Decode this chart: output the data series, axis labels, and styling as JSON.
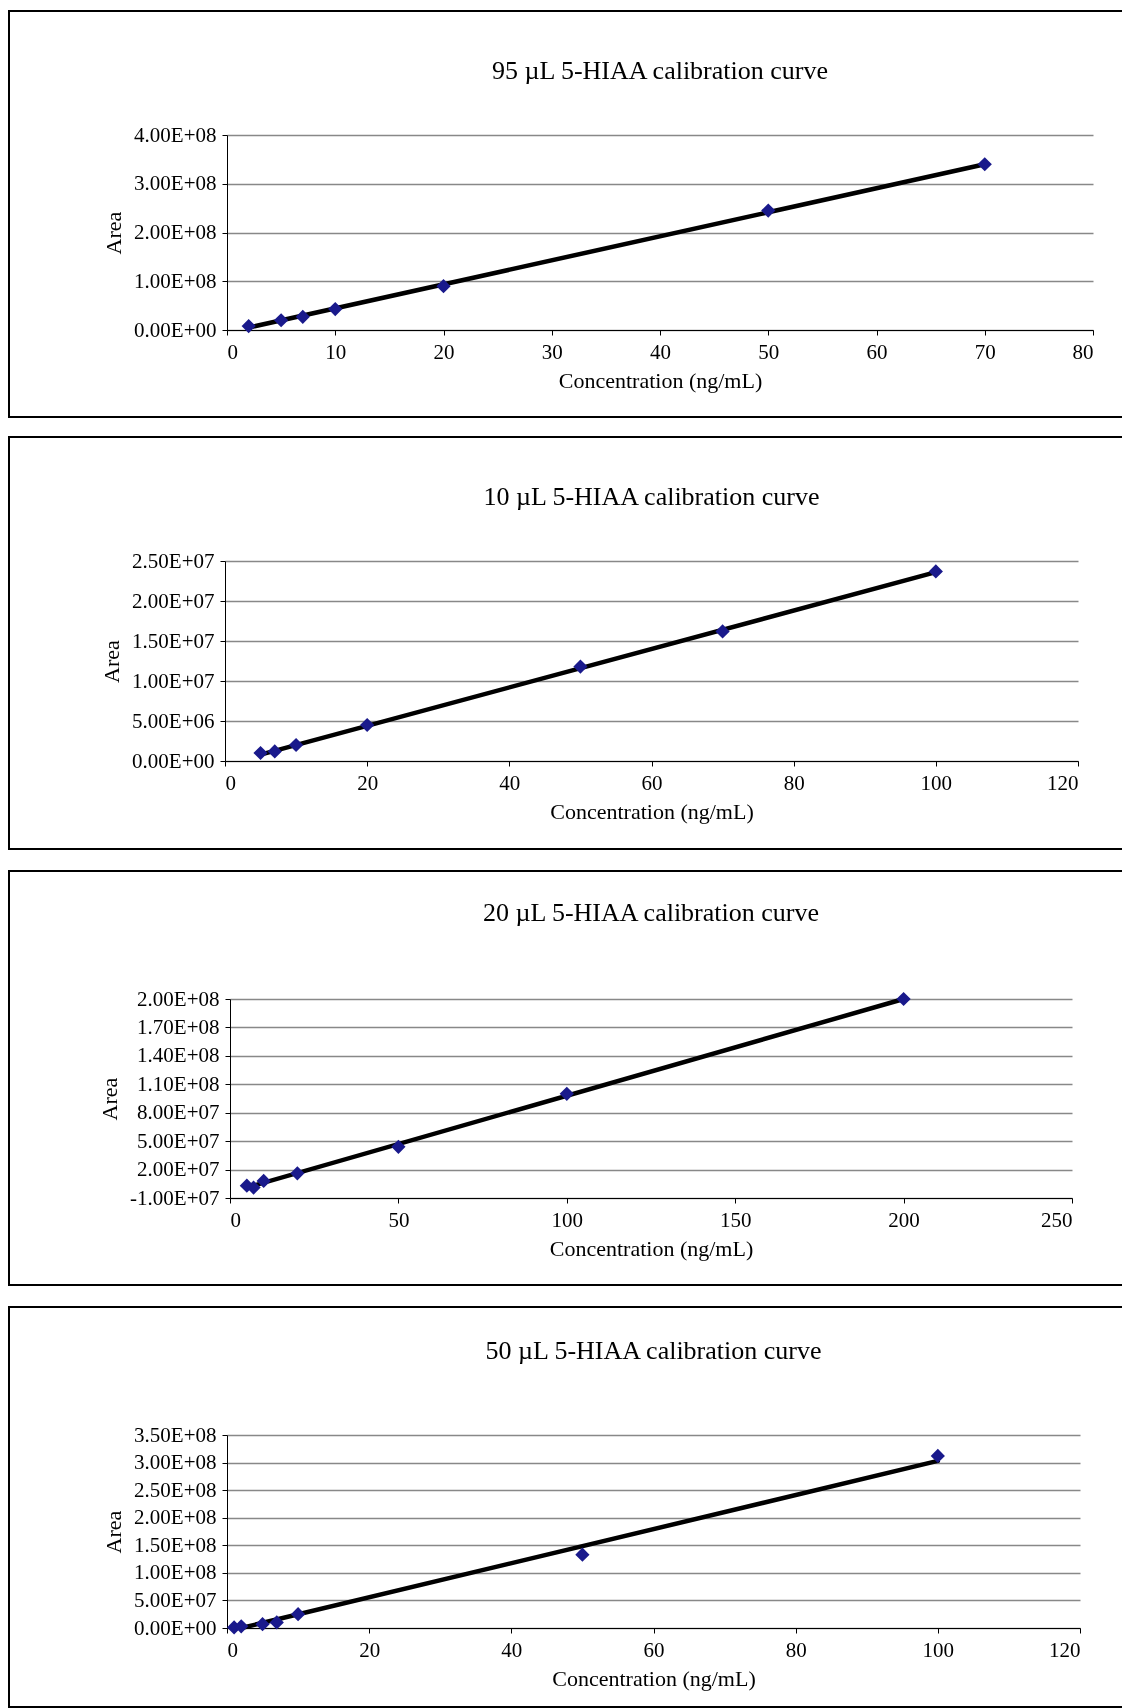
{
  "chart_data": [
    {
      "type": "scatter",
      "title": "95 µL 5-HIAA calibration curve",
      "xlabel": "Concentration (ng/mL)",
      "ylabel": "Area",
      "xlim": [
        0,
        80
      ],
      "xticks": [
        0,
        10,
        20,
        30,
        40,
        50,
        60,
        70,
        80
      ],
      "ylim": [
        0,
        400000000
      ],
      "yticks": [
        {
          "value": 0,
          "label": "0.00E+00"
        },
        {
          "value": 100000000,
          "label": "1.00E+08"
        },
        {
          "value": 200000000,
          "label": "2.00E+08"
        },
        {
          "value": 300000000,
          "label": "3.00E+08"
        },
        {
          "value": 400000000,
          "label": "4.00E+08"
        }
      ],
      "grid": "y",
      "marker": "diamond",
      "series": [
        {
          "type": "scatter",
          "color": "#1a1a8c",
          "x": [
            2,
            5,
            7,
            10,
            20,
            50,
            70
          ],
          "values": [
            8000000,
            20000000,
            27000000,
            43000000,
            90000000,
            245000000,
            340000000
          ]
        },
        {
          "type": "line",
          "color": "#000000",
          "line_style": "solid",
          "marker": "none",
          "x": [
            2,
            70
          ],
          "values": [
            5000000,
            340000000
          ]
        }
      ]
    },
    {
      "type": "scatter",
      "title": "10 µL 5-HIAA calibration curve",
      "xlabel": "Concentration (ng/mL)",
      "ylabel": "Area",
      "xlim": [
        0,
        120
      ],
      "xticks": [
        0,
        20,
        40,
        60,
        80,
        100,
        120
      ],
      "ylim": [
        0,
        25000000
      ],
      "yticks": [
        {
          "value": 0,
          "label": "0.00E+00"
        },
        {
          "value": 5000000,
          "label": "5.00E+06"
        },
        {
          "value": 10000000,
          "label": "1.00E+07"
        },
        {
          "value": 15000000,
          "label": "1.50E+07"
        },
        {
          "value": 20000000,
          "label": "2.00E+07"
        },
        {
          "value": 25000000,
          "label": "2.50E+07"
        }
      ],
      "grid": "y",
      "marker": "diamond",
      "series": [
        {
          "type": "scatter",
          "color": "#1a1a8c",
          "x": [
            5,
            7,
            10,
            20,
            50,
            70,
            100
          ],
          "values": [
            1000000,
            1200000,
            2000000,
            4500000,
            11800000,
            16200000,
            23700000
          ]
        },
        {
          "type": "line",
          "color": "#000000",
          "line_style": "solid",
          "marker": "none",
          "x": [
            5,
            100
          ],
          "values": [
            800000,
            23600000
          ]
        }
      ]
    },
    {
      "type": "scatter",
      "title": "20 µL 5-HIAA calibration curve",
      "xlabel": "Concentration (ng/mL)",
      "ylabel": "Area",
      "xlim": [
        0,
        250
      ],
      "xticks": [
        0,
        50,
        100,
        150,
        200,
        250
      ],
      "ylim": [
        -10000000,
        200000000
      ],
      "yticks": [
        {
          "value": -10000000,
          "label": "-1.00E+07"
        },
        {
          "value": 20000000,
          "label": "2.00E+07"
        },
        {
          "value": 50000000,
          "label": "5.00E+07"
        },
        {
          "value": 80000000,
          "label": "8.00E+07"
        },
        {
          "value": 110000000,
          "label": "1.10E+08"
        },
        {
          "value": 140000000,
          "label": "1.40E+08"
        },
        {
          "value": 170000000,
          "label": "1.70E+08"
        },
        {
          "value": 200000000,
          "label": "2.00E+08"
        }
      ],
      "grid": "y",
      "marker": "diamond",
      "series": [
        {
          "type": "scatter",
          "color": "#1a1a8c",
          "x": [
            5,
            7,
            10,
            20,
            50,
            100,
            200
          ],
          "values": [
            3000000,
            1000000,
            8000000,
            16000000,
            44000000,
            100000000,
            200000000
          ]
        },
        {
          "type": "line",
          "color": "#000000",
          "line_style": "solid",
          "marker": "none",
          "x": [
            5,
            200
          ],
          "values": [
            1000000,
            200000000
          ]
        }
      ]
    },
    {
      "type": "scatter",
      "title": "50 µL 5-HIAA calibration curve",
      "xlabel": "Concentration (ng/mL)",
      "ylabel": "Area",
      "xlim": [
        0,
        120
      ],
      "xticks": [
        0,
        20,
        40,
        60,
        80,
        100,
        120
      ],
      "ylim": [
        0,
        350000000
      ],
      "yticks": [
        {
          "value": 0,
          "label": "0.00E+00"
        },
        {
          "value": 50000000,
          "label": "5.00E+07"
        },
        {
          "value": 100000000,
          "label": "1.00E+08"
        },
        {
          "value": 150000000,
          "label": "1.50E+08"
        },
        {
          "value": 200000000,
          "label": "2.00E+08"
        },
        {
          "value": 250000000,
          "label": "2.50E+08"
        },
        {
          "value": 300000000,
          "label": "3.00E+08"
        },
        {
          "value": 350000000,
          "label": "3.50E+08"
        }
      ],
      "grid": "y",
      "marker": "diamond",
      "series": [
        {
          "type": "scatter",
          "color": "#1a1a8c",
          "x": [
            1,
            2,
            5,
            7,
            10,
            50,
            100
          ],
          "values": [
            1000000,
            3000000,
            7000000,
            10000000,
            25000000,
            133000000,
            312000000
          ]
        },
        {
          "type": "line",
          "color": "#000000",
          "line_style": "solid",
          "marker": "none",
          "x": [
            2,
            100
          ],
          "values": [
            0,
            303000000
          ]
        }
      ]
    }
  ]
}
